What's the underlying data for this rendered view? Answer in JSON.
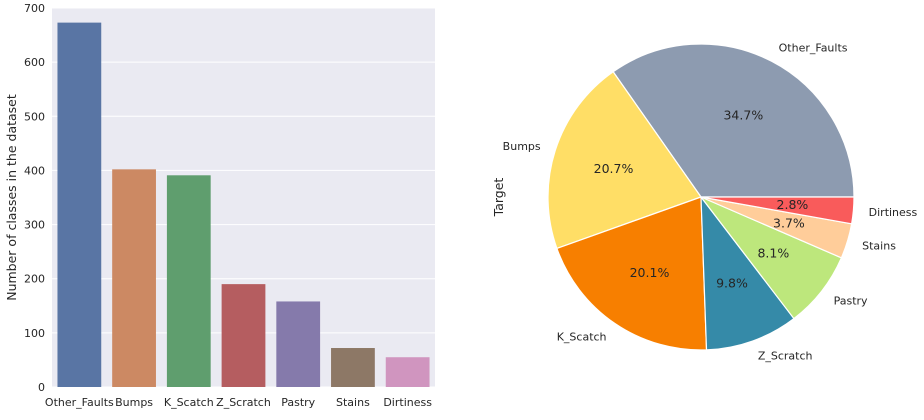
{
  "chart_data": [
    {
      "type": "bar",
      "title": "",
      "xlabel": "",
      "ylabel": "Number of classes in the dataset",
      "categories": [
        "Other_Faults",
        "Bumps",
        "K_Scatch",
        "Z_Scratch",
        "Pastry",
        "Stains",
        "Dirtiness"
      ],
      "values": [
        673,
        402,
        391,
        190,
        158,
        72,
        55
      ],
      "ylim": [
        0,
        700
      ],
      "yticks": [
        0,
        100,
        200,
        300,
        400,
        500,
        600,
        700
      ],
      "grid": true,
      "background": "#eaeaf2",
      "colors": [
        "#5975a4",
        "#cc8963",
        "#5f9e6e",
        "#b55d60",
        "#857aab",
        "#8d7866",
        "#d095bf"
      ]
    },
    {
      "type": "pie",
      "title": "",
      "ylabel": "Target",
      "labels": [
        "Other_Faults",
        "Bumps",
        "K_Scatch",
        "Z_Scratch",
        "Pastry",
        "Stains",
        "Dirtiness"
      ],
      "values": [
        34.7,
        20.7,
        20.1,
        9.8,
        8.1,
        3.7,
        2.8
      ],
      "percent_labels": [
        "34.7%",
        "20.7%",
        "20.1%",
        "9.8%",
        "8.1%",
        "3.7%",
        "2.8%"
      ],
      "colors": [
        "#8d9bb0",
        "#ffde66",
        "#f77f00",
        "#358aa8",
        "#bde77c",
        "#ffcd9a",
        "#f95b5b"
      ]
    }
  ]
}
